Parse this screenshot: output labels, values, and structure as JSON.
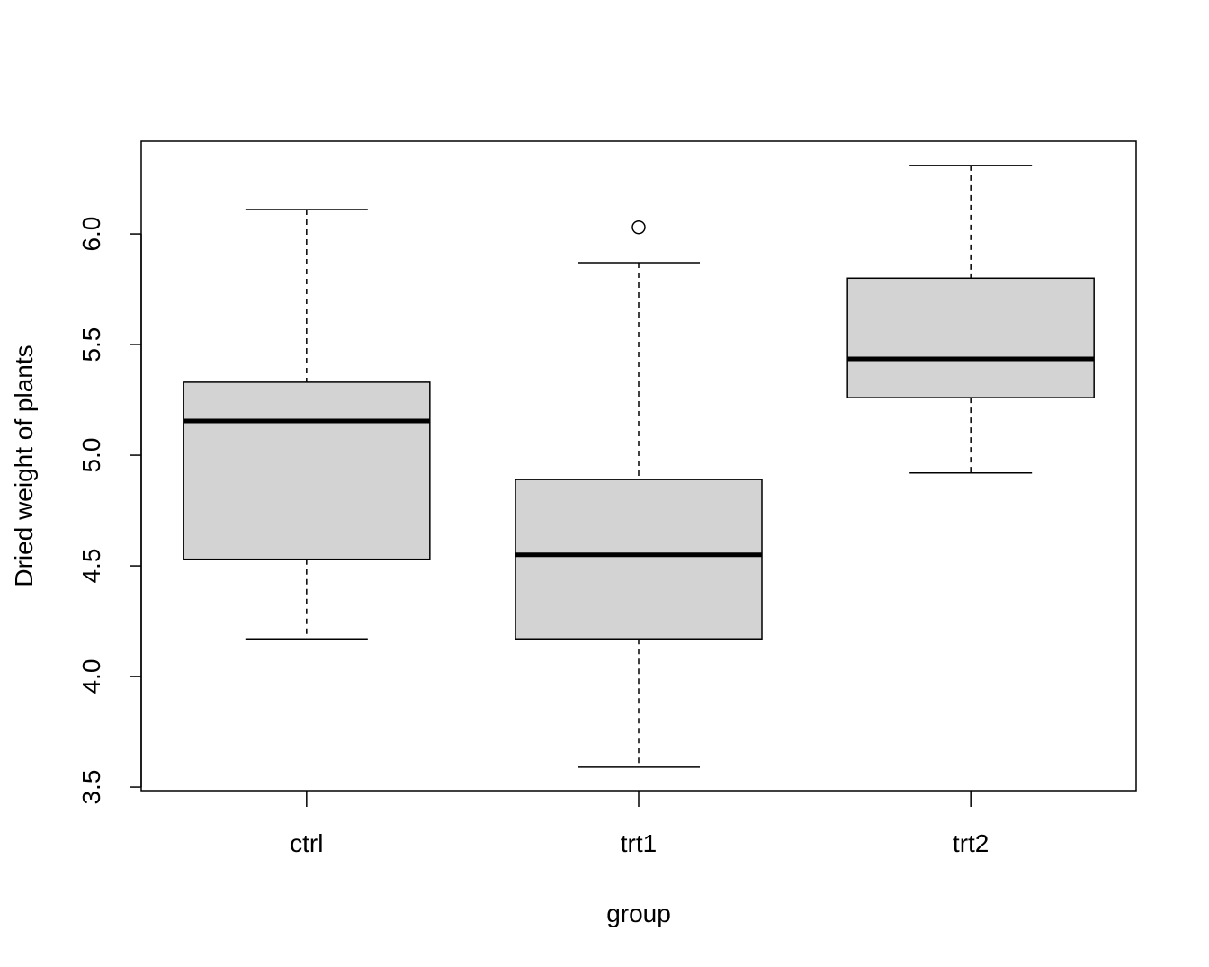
{
  "chart_data": {
    "type": "boxplot",
    "title": "",
    "xlabel": "group",
    "ylabel": "Dried weight of plants",
    "categories": [
      "ctrl",
      "trt1",
      "trt2"
    ],
    "boxes": [
      {
        "name": "ctrl",
        "whisker_low": 4.17,
        "q1": 4.53,
        "median": 5.155,
        "q3": 5.33,
        "whisker_high": 6.11,
        "outliers": []
      },
      {
        "name": "trt1",
        "whisker_low": 3.59,
        "q1": 4.17,
        "median": 4.55,
        "q3": 4.89,
        "whisker_high": 5.87,
        "outliers": [
          6.03
        ]
      },
      {
        "name": "trt2",
        "whisker_low": 4.92,
        "q1": 5.26,
        "median": 5.435,
        "q3": 5.8,
        "whisker_high": 6.31,
        "outliers": []
      }
    ],
    "yticks": [
      3.5,
      4.0,
      4.5,
      5.0,
      5.5,
      6.0
    ],
    "ytick_labels": [
      "3.5",
      "4.0",
      "4.5",
      "5.0",
      "5.5",
      "6.0"
    ],
    "ylim": [
      3.484,
      6.419
    ],
    "grid": false,
    "box_fill": "#d3d3d3"
  }
}
